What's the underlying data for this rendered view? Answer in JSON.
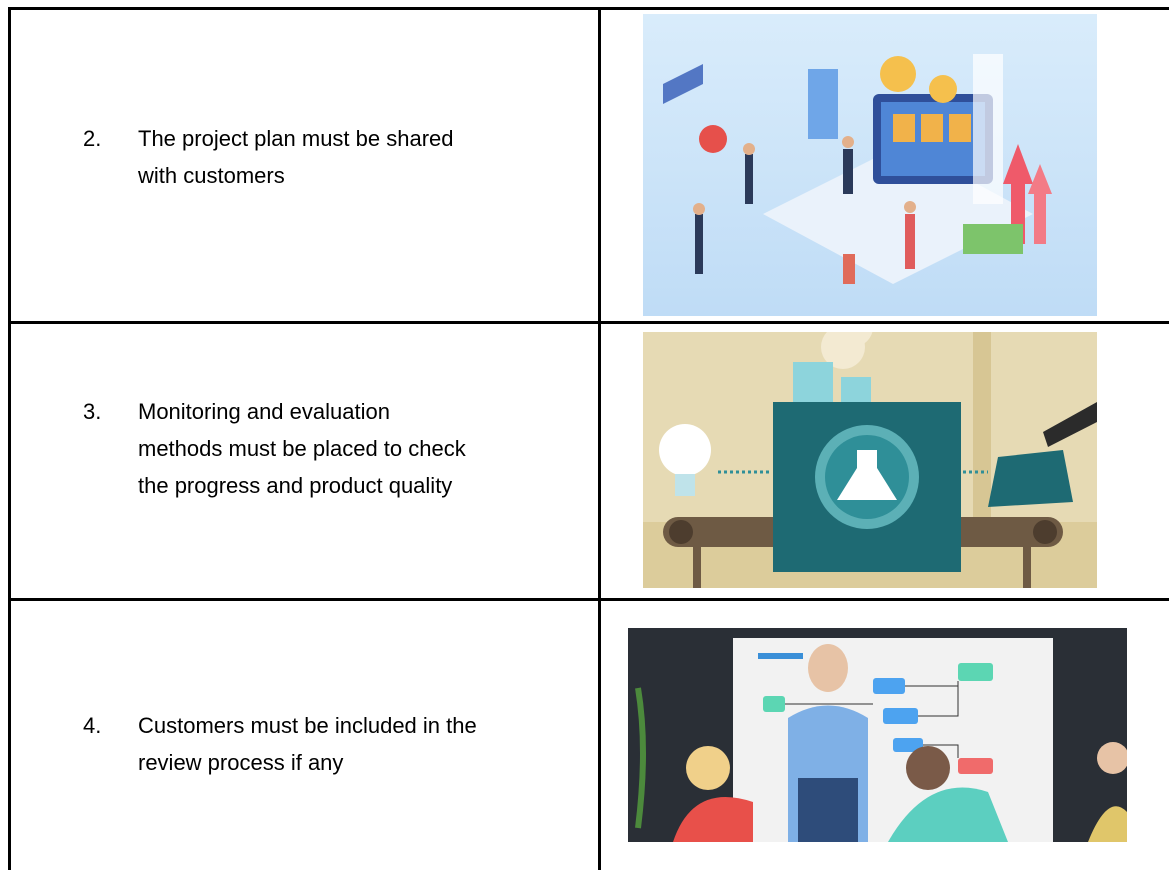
{
  "table": {
    "rows": [
      {
        "number": "2.",
        "lines": [
          "The project plan must be shared",
          "with customers"
        ]
      },
      {
        "number": "3.",
        "lines": [
          "Monitoring and evaluation",
          "methods must be placed to check",
          "the progress and product quality"
        ]
      },
      {
        "number": "4.",
        "lines": [
          "Customers must be included in the",
          "review process if any"
        ]
      }
    ]
  }
}
